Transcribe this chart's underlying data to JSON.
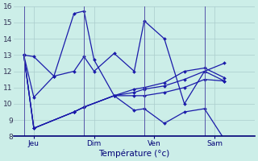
{
  "background_color": "#cceee8",
  "grid_color": "#aacccc",
  "line_color": "#1a1aaa",
  "xlabel": "Température (°c)",
  "x_tick_labels": [
    "Jeu",
    "Dim",
    "Ven",
    "Sam"
  ],
  "x_tick_positions": [
    0.5,
    3.5,
    6.5,
    9.5
  ],
  "x_vline_positions": [
    0,
    3,
    6,
    9
  ],
  "ylim": [
    8,
    16
  ],
  "xlim": [
    -0.5,
    11.5
  ],
  "yticks": [
    8,
    9,
    10,
    11,
    12,
    13,
    14,
    15,
    16
  ],
  "series": [
    {
      "x": [
        0,
        0.5,
        1.5,
        2.5,
        3.0,
        3.5,
        4.5,
        5.5,
        6.0,
        7.0,
        8.0,
        9.0,
        10.0
      ],
      "y": [
        13.0,
        12.9,
        11.7,
        15.55,
        15.7,
        12.7,
        10.5,
        9.6,
        9.7,
        8.8,
        9.5,
        9.7,
        7.8
      ]
    },
    {
      "x": [
        0,
        0.5,
        1.5,
        2.5,
        3.0,
        3.5,
        4.5,
        5.5,
        6.0,
        7.0,
        8.0,
        9.0,
        10.0
      ],
      "y": [
        13.0,
        10.4,
        11.7,
        12.0,
        12.9,
        12.0,
        13.1,
        12.0,
        15.1,
        14.0,
        10.0,
        12.0,
        12.5
      ]
    },
    {
      "x": [
        0,
        0.5,
        2.5,
        3.0,
        4.5,
        5.5,
        6.0,
        7.0,
        8.0,
        9.0,
        10.0
      ],
      "y": [
        13.0,
        8.5,
        9.5,
        9.8,
        10.5,
        10.5,
        10.5,
        10.7,
        11.0,
        11.5,
        11.4
      ]
    },
    {
      "x": [
        0,
        0.5,
        2.5,
        3.0,
        4.5,
        5.5,
        6.0,
        7.0,
        8.0,
        9.0,
        10.0
      ],
      "y": [
        13.0,
        8.5,
        9.5,
        9.8,
        10.5,
        10.7,
        10.9,
        11.1,
        11.5,
        12.0,
        11.4
      ]
    },
    {
      "x": [
        0,
        0.5,
        2.5,
        3.0,
        4.5,
        5.5,
        6.0,
        7.0,
        8.0,
        9.0,
        10.0
      ],
      "y": [
        13.0,
        8.5,
        9.5,
        9.8,
        10.5,
        10.9,
        11.0,
        11.3,
        12.0,
        12.2,
        11.6
      ]
    }
  ]
}
